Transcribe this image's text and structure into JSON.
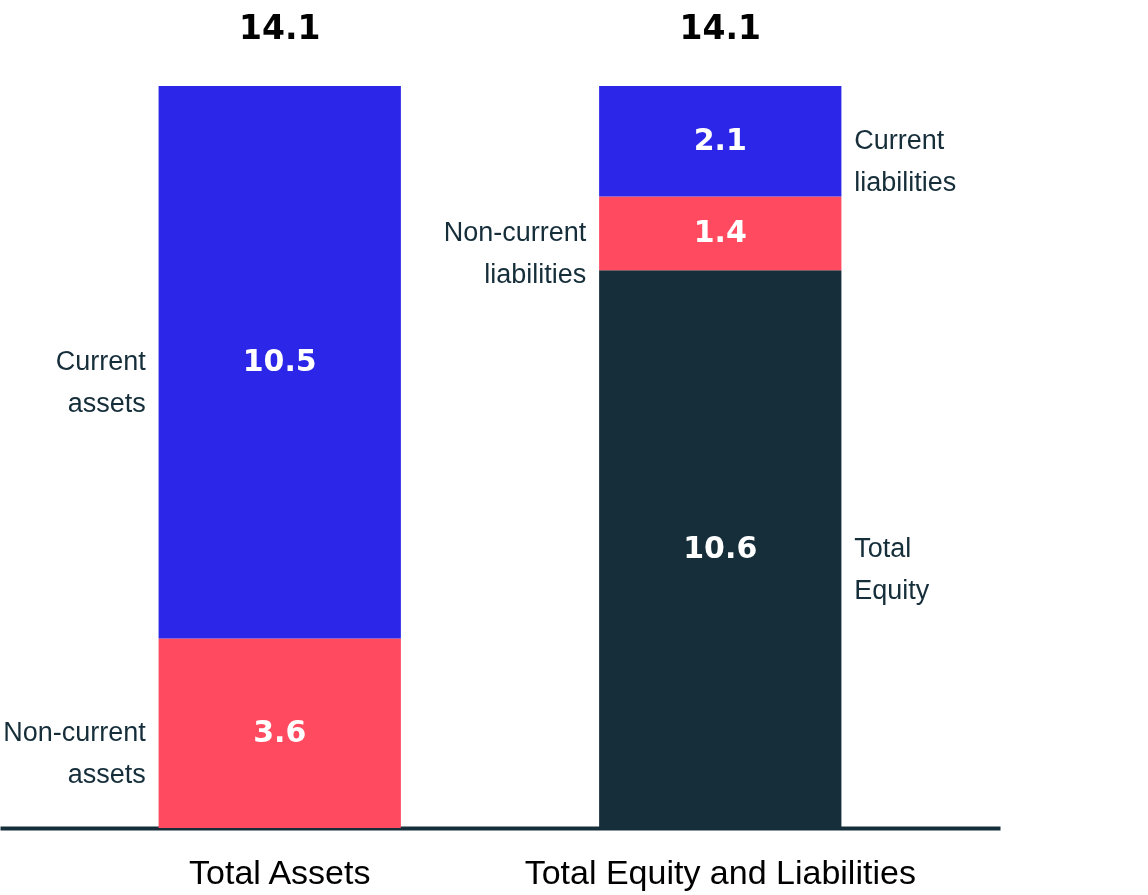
{
  "chart_data": {
    "type": "bar",
    "stacked": true,
    "data_labels": true,
    "categories": [
      "Total Assets",
      "Total Equity and Liabilities"
    ],
    "series": [
      {
        "name": "Non-current assets",
        "color": "#ff4a60",
        "values": [
          3.6,
          null
        ]
      },
      {
        "name": "Current assets",
        "color": "#2b26e8",
        "values": [
          10.5,
          null
        ]
      },
      {
        "name": "Total Equity",
        "color": "#152e3a",
        "values": [
          null,
          10.6
        ]
      },
      {
        "name": "Non-current liabilities",
        "color": "#ff4a60",
        "values": [
          null,
          1.4
        ]
      },
      {
        "name": "Current liabilities",
        "color": "#2b26e8",
        "values": [
          null,
          2.1
        ]
      }
    ],
    "totals": [
      "14.1",
      "14.1"
    ]
  }
}
